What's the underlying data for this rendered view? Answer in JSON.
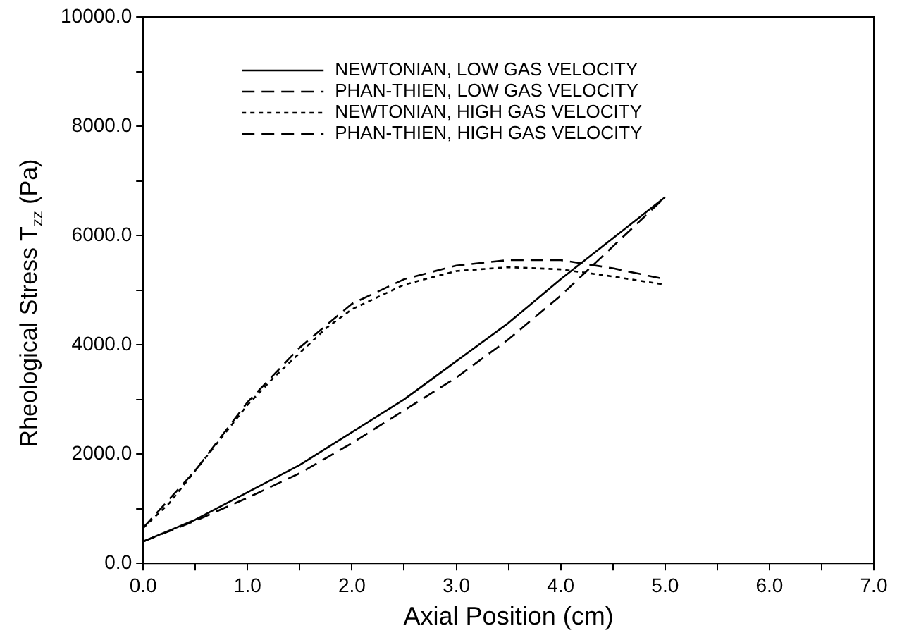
{
  "chart_data": {
    "type": "line",
    "xlabel": "Axial Position (cm)",
    "ylabel": "Rheological Stress T$_{zz}$ (Pa)",
    "xlim": [
      0,
      7
    ],
    "xticks": [
      {
        "value": 0,
        "label": "0.0"
      },
      {
        "value": 0.5,
        "label": null
      },
      {
        "value": 1,
        "label": "1.0"
      },
      {
        "value": 1.5,
        "label": null
      },
      {
        "value": 2,
        "label": "2.0"
      },
      {
        "value": 2.5,
        "label": null
      },
      {
        "value": 3,
        "label": "3.0"
      },
      {
        "value": 3.5,
        "label": null
      },
      {
        "value": 4,
        "label": "4.0"
      },
      {
        "value": 4.5,
        "label": null
      },
      {
        "value": 5,
        "label": "5.0"
      },
      {
        "value": 5.5,
        "label": null
      },
      {
        "value": 6,
        "label": "6.0"
      },
      {
        "value": 6.5,
        "label": null
      },
      {
        "value": 7,
        "label": "7.0"
      }
    ],
    "ylim": [
      0,
      10000
    ],
    "yticks": [
      {
        "value": 0,
        "label": "0.0"
      },
      {
        "value": 1000,
        "label": null
      },
      {
        "value": 2000,
        "label": "2000.0"
      },
      {
        "value": 3000,
        "label": null
      },
      {
        "value": 4000,
        "label": "4000.0"
      },
      {
        "value": 5000,
        "label": null
      },
      {
        "value": 6000,
        "label": "6000.0"
      },
      {
        "value": 7000,
        "label": null
      },
      {
        "value": 8000,
        "label": "8000.0"
      },
      {
        "value": 9000,
        "label": null
      },
      {
        "value": 10000,
        "label": "10000.0"
      }
    ],
    "grid": false,
    "legend": "top",
    "marker": "none",
    "series": [
      {
        "name": "NEWTONIAN, LOW GAS VELOCITY",
        "color": "#000000",
        "line_style": "solid",
        "x": [
          0,
          0.5,
          1,
          1.5,
          2,
          2.5,
          3,
          3.5,
          4,
          4.5,
          5
        ],
        "values": [
          400,
          800,
          1300,
          1800,
          2400,
          3000,
          3700,
          4400,
          5200,
          5950,
          6700
        ]
      },
      {
        "name": "PHAN-THIEN, LOW GAS VELOCITY",
        "color": "#000000",
        "line_style": "dashed",
        "x": [
          0,
          0.5,
          1,
          1.5,
          2,
          2.5,
          3,
          3.5,
          4,
          4.5,
          5
        ],
        "values": [
          400,
          780,
          1200,
          1650,
          2200,
          2800,
          3400,
          4100,
          4900,
          5800,
          6700
        ]
      },
      {
        "name": "NEWTONIAN, HIGH GAS VELOCITY",
        "color": "#000000",
        "line_style": "dotted",
        "x": [
          0,
          0.25,
          0.5,
          0.75,
          1,
          1.25,
          1.5,
          1.75,
          2,
          2.5,
          3,
          3.5,
          4,
          4.5,
          5
        ],
        "values": [
          650,
          1100,
          1700,
          2300,
          2900,
          3400,
          3850,
          4300,
          4650,
          5100,
          5350,
          5420,
          5380,
          5250,
          5100
        ]
      },
      {
        "name": "PHAN-THIEN, HIGH GAS VELOCITY",
        "color": "#000000",
        "line_style": "dashed",
        "x": [
          0,
          0.5,
          1,
          1.5,
          2,
          2.5,
          3,
          3.5,
          4,
          4.5,
          5
        ],
        "values": [
          650,
          1700,
          2950,
          3950,
          4750,
          5200,
          5450,
          5550,
          5550,
          5400,
          5200
        ]
      }
    ]
  }
}
